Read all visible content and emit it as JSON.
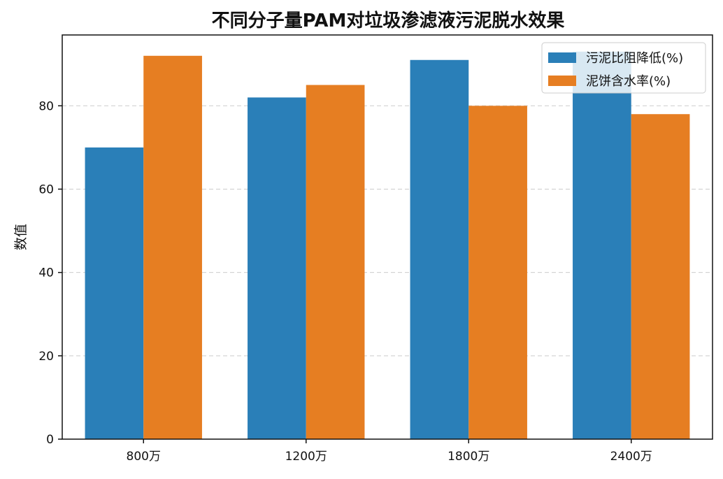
{
  "chart_data": {
    "type": "bar",
    "title": "不同分子量PAM对垃圾渗滤液污泥脱水效果",
    "xlabel": "",
    "ylabel": "数值",
    "categories": [
      "800万",
      "1200万",
      "1800万",
      "2400万"
    ],
    "series": [
      {
        "name": "污泥比阻降低(%)",
        "values": [
          70,
          82,
          91,
          93
        ],
        "color": "#2a7fb8"
      },
      {
        "name": "泥饼含水率(%)",
        "values": [
          92,
          85,
          80,
          78
        ],
        "color": "#e67e22"
      }
    ],
    "ylim": [
      0,
      97
    ],
    "yticks": [
      0,
      20,
      40,
      60,
      80
    ],
    "grid": "horizontal-dashed",
    "legend_position": "top-right"
  }
}
